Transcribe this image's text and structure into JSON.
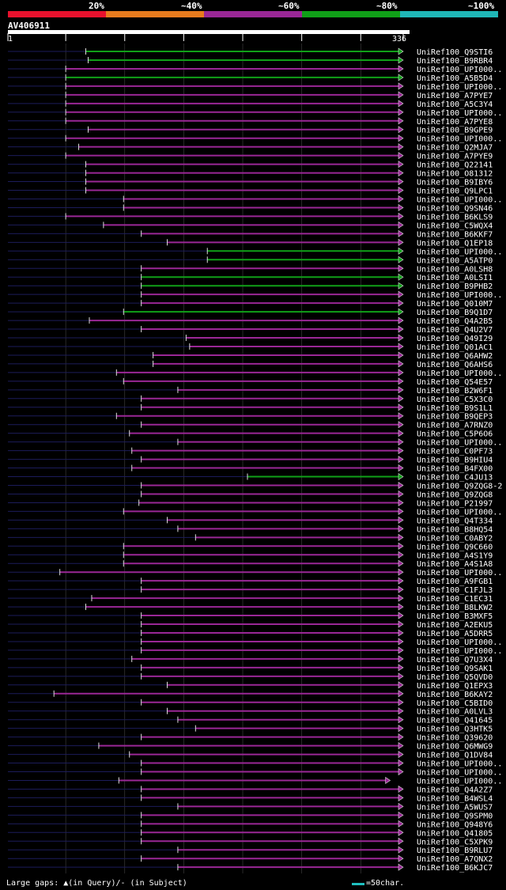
{
  "header": {
    "query_id": "AV406911",
    "range_start": "1",
    "range_end": "336"
  },
  "legend": {
    "labels": [
      "20%",
      "~40%",
      "~60%",
      "~80%",
      "~100%"
    ],
    "colors": [
      "#e8112d",
      "#e87b1e",
      "#9a2796",
      "#10a018",
      "#1fb8b8"
    ]
  },
  "footer": {
    "gaps_text": "Large gaps: ▲(in Query)/- (in Subject)",
    "scale_text": "=50char."
  },
  "chart_data": {
    "type": "alignment",
    "query_length": 336,
    "xlim": [
      1,
      336
    ],
    "hits": [
      {
        "name": "UniRef100_Q9STI6",
        "start": 67,
        "end": 336,
        "color": "green"
      },
      {
        "name": "UniRef100_B9RBR4",
        "start": 69,
        "end": 336,
        "color": "green"
      },
      {
        "name": "UniRef100_UPI000..",
        "start": 50,
        "end": 336,
        "color": "purple"
      },
      {
        "name": "UniRef100_A5B5D4",
        "start": 50,
        "end": 336,
        "color": "green"
      },
      {
        "name": "UniRef100_UPI000..",
        "start": 50,
        "end": 336,
        "color": "purple"
      },
      {
        "name": "UniRef100_A7PYE7",
        "start": 50,
        "end": 336,
        "color": "purple"
      },
      {
        "name": "UniRef100_A5C3Y4",
        "start": 50,
        "end": 336,
        "color": "purple"
      },
      {
        "name": "UniRef100_UPI000..",
        "start": 50,
        "end": 336,
        "color": "purple"
      },
      {
        "name": "UniRef100_A7PYE8",
        "start": 50,
        "end": 336,
        "color": "purple"
      },
      {
        "name": "UniRef100_B9GPE9",
        "start": 69,
        "end": 336,
        "color": "purple"
      },
      {
        "name": "UniRef100_UPI000..",
        "start": 50,
        "end": 336,
        "color": "purple"
      },
      {
        "name": "UniRef100_Q2MJA7",
        "start": 61,
        "end": 336,
        "color": "purple"
      },
      {
        "name": "UniRef100_A7PYE9",
        "start": 50,
        "end": 336,
        "color": "purple"
      },
      {
        "name": "UniRef100_Q22141",
        "start": 67,
        "end": 336,
        "color": "purple"
      },
      {
        "name": "UniRef100_O81312",
        "start": 67,
        "end": 336,
        "color": "purple"
      },
      {
        "name": "UniRef100_B9IBY6",
        "start": 67,
        "end": 336,
        "color": "purple"
      },
      {
        "name": "UniRef100_Q9LPC1",
        "start": 67,
        "end": 336,
        "color": "purple"
      },
      {
        "name": "UniRef100_UPI000..",
        "start": 99,
        "end": 336,
        "color": "purple"
      },
      {
        "name": "UniRef100_Q9SN46",
        "start": 99,
        "end": 336,
        "color": "purple"
      },
      {
        "name": "UniRef100_B6KLS9",
        "start": 50,
        "end": 336,
        "color": "purple"
      },
      {
        "name": "UniRef100_C5WQX4",
        "start": 82,
        "end": 336,
        "color": "purple"
      },
      {
        "name": "UniRef100_B6KKF7",
        "start": 114,
        "end": 336,
        "color": "purple"
      },
      {
        "name": "UniRef100_Q1EP18",
        "start": 136,
        "end": 336,
        "color": "purple"
      },
      {
        "name": "UniRef100_UPI000..",
        "start": 170,
        "end": 336,
        "color": "green"
      },
      {
        "name": "UniRef100_A5ATP0",
        "start": 170,
        "end": 336,
        "color": "green"
      },
      {
        "name": "UniRef100_A0LSH8",
        "start": 114,
        "end": 336,
        "color": "purple"
      },
      {
        "name": "UniRef100_A0LSI1",
        "start": 114,
        "end": 336,
        "color": "green"
      },
      {
        "name": "UniRef100_B9PHB2",
        "start": 114,
        "end": 336,
        "color": "green"
      },
      {
        "name": "UniRef100_UPI000..",
        "start": 114,
        "end": 336,
        "color": "purple"
      },
      {
        "name": "UniRef100_Q010M7",
        "start": 114,
        "end": 336,
        "color": "purple"
      },
      {
        "name": "UniRef100_B9Q1D7",
        "start": 99,
        "end": 336,
        "color": "green"
      },
      {
        "name": "UniRef100_Q4A2B5",
        "start": 70,
        "end": 336,
        "color": "purple"
      },
      {
        "name": "UniRef100_Q4U2V7",
        "start": 114,
        "end": 336,
        "color": "purple"
      },
      {
        "name": "UniRef100_Q49I29",
        "start": 152,
        "end": 336,
        "color": "purple"
      },
      {
        "name": "UniRef100_Q01AC1",
        "start": 155,
        "end": 336,
        "color": "purple"
      },
      {
        "name": "UniRef100_Q6AHW2",
        "start": 124,
        "end": 336,
        "color": "purple"
      },
      {
        "name": "UniRef100_Q6AHS6",
        "start": 124,
        "end": 336,
        "color": "purple"
      },
      {
        "name": "UniRef100_UPI000..",
        "start": 93,
        "end": 336,
        "color": "purple"
      },
      {
        "name": "UniRef100_Q54E57",
        "start": 99,
        "end": 336,
        "color": "purple"
      },
      {
        "name": "UniRef100_B2W6F1",
        "start": 145,
        "end": 336,
        "color": "purple"
      },
      {
        "name": "UniRef100_C5X3C0",
        "start": 114,
        "end": 336,
        "color": "purple"
      },
      {
        "name": "UniRef100_B9S1L1",
        "start": 114,
        "end": 336,
        "color": "purple"
      },
      {
        "name": "UniRef100_B9QEP3",
        "start": 93,
        "end": 336,
        "color": "purple"
      },
      {
        "name": "UniRef100_A7RNZ0",
        "start": 114,
        "end": 336,
        "color": "purple"
      },
      {
        "name": "UniRef100_C5P6O6",
        "start": 104,
        "end": 336,
        "color": "purple"
      },
      {
        "name": "UniRef100_UPI000..",
        "start": 145,
        "end": 336,
        "color": "purple"
      },
      {
        "name": "UniRef100_C0PF73",
        "start": 106,
        "end": 336,
        "color": "purple"
      },
      {
        "name": "UniRef100_B9HIU4",
        "start": 114,
        "end": 336,
        "color": "purple"
      },
      {
        "name": "UniRef100_B4FX00",
        "start": 106,
        "end": 336,
        "color": "purple"
      },
      {
        "name": "UniRef100_C4JU13",
        "start": 204,
        "end": 336,
        "color": "green"
      },
      {
        "name": "UniRef100_Q9ZQG8-2",
        "start": 114,
        "end": 336,
        "color": "purple"
      },
      {
        "name": "UniRef100_Q9ZQG8",
        "start": 114,
        "end": 336,
        "color": "purple"
      },
      {
        "name": "UniRef100_P21997",
        "start": 112,
        "end": 336,
        "color": "purple"
      },
      {
        "name": "UniRef100_UPI000..",
        "start": 99,
        "end": 336,
        "color": "purple"
      },
      {
        "name": "UniRef100_Q4T334",
        "start": 136,
        "end": 336,
        "color": "purple"
      },
      {
        "name": "UniRef100_B8HQ54",
        "start": 145,
        "end": 336,
        "color": "purple"
      },
      {
        "name": "UniRef100_C0ABY2",
        "start": 160,
        "end": 336,
        "color": "purple"
      },
      {
        "name": "UniRef100_Q9C660",
        "start": 99,
        "end": 336,
        "color": "purple"
      },
      {
        "name": "UniRef100_A4S1Y9",
        "start": 99,
        "end": 336,
        "color": "purple"
      },
      {
        "name": "UniRef100_A4S1A8",
        "start": 99,
        "end": 336,
        "color": "purple"
      },
      {
        "name": "UniRef100_UPI000..",
        "start": 45,
        "end": 336,
        "color": "purple"
      },
      {
        "name": "UniRef100_A9FGB1",
        "start": 114,
        "end": 336,
        "color": "purple"
      },
      {
        "name": "UniRef100_C1FJL3",
        "start": 114,
        "end": 336,
        "color": "purple"
      },
      {
        "name": "UniRef100_C1EC31",
        "start": 72,
        "end": 336,
        "color": "purple"
      },
      {
        "name": "UniRef100_B8LKW2",
        "start": 67,
        "end": 336,
        "color": "purple"
      },
      {
        "name": "UniRef100_B3MXF5",
        "start": 114,
        "end": 336,
        "color": "purple"
      },
      {
        "name": "UniRef100_A2EKU5",
        "start": 114,
        "end": 336,
        "color": "purple"
      },
      {
        "name": "UniRef100_A5DRR5",
        "start": 114,
        "end": 336,
        "color": "purple"
      },
      {
        "name": "UniRef100_UPI000..",
        "start": 114,
        "end": 336,
        "color": "purple"
      },
      {
        "name": "UniRef100_UPI000..",
        "start": 114,
        "end": 336,
        "color": "purple"
      },
      {
        "name": "UniRef100_Q7U3X4",
        "start": 106,
        "end": 336,
        "color": "purple"
      },
      {
        "name": "UniRef100_Q9SAK1",
        "start": 114,
        "end": 336,
        "color": "purple"
      },
      {
        "name": "UniRef100_Q5QVD0",
        "start": 114,
        "end": 336,
        "color": "purple"
      },
      {
        "name": "UniRef100_Q1EPX3",
        "start": 136,
        "end": 336,
        "color": "purple"
      },
      {
        "name": "UniRef100_B6KAY2",
        "start": 40,
        "end": 336,
        "color": "purple"
      },
      {
        "name": "UniRef100_C5BID0",
        "start": 114,
        "end": 336,
        "color": "purple"
      },
      {
        "name": "UniRef100_A0LVL3",
        "start": 136,
        "end": 336,
        "color": "purple"
      },
      {
        "name": "UniRef100_Q41645",
        "start": 145,
        "end": 336,
        "color": "purple"
      },
      {
        "name": "UniRef100_Q3HTK5",
        "start": 160,
        "end": 336,
        "color": "purple"
      },
      {
        "name": "UniRef100_Q39620",
        "start": 114,
        "end": 336,
        "color": "purple"
      },
      {
        "name": "UniRef100_Q6MWG9",
        "start": 78,
        "end": 336,
        "color": "purple"
      },
      {
        "name": "UniRef100_Q1DV84",
        "start": 104,
        "end": 336,
        "color": "purple"
      },
      {
        "name": "UniRef100_UPI000..",
        "start": 114,
        "end": 336,
        "color": "purple"
      },
      {
        "name": "UniRef100_UPI000..",
        "start": 114,
        "end": 336,
        "color": "purple"
      },
      {
        "name": "UniRef100_UPI000..",
        "start": 95,
        "end": 325,
        "color": "purple"
      },
      {
        "name": "UniRef100_Q4A2Z7",
        "start": 114,
        "end": 336,
        "color": "purple"
      },
      {
        "name": "UniRef100_B4WSL4",
        "start": 114,
        "end": 336,
        "color": "purple"
      },
      {
        "name": "UniRef100_A5WUS7",
        "start": 145,
        "end": 336,
        "color": "purple"
      },
      {
        "name": "UniRef100_Q9SPM0",
        "start": 114,
        "end": 336,
        "color": "purple"
      },
      {
        "name": "UniRef100_Q948Y6",
        "start": 114,
        "end": 336,
        "color": "purple"
      },
      {
        "name": "UniRef100_Q41805",
        "start": 114,
        "end": 336,
        "color": "purple"
      },
      {
        "name": "UniRef100_C5XPK9",
        "start": 114,
        "end": 336,
        "color": "purple"
      },
      {
        "name": "UniRef100_B9RLU7",
        "start": 145,
        "end": 336,
        "color": "purple"
      },
      {
        "name": "UniRef100_A7QNX2",
        "start": 114,
        "end": 336,
        "color": "purple"
      },
      {
        "name": "UniRef100_B6KJC7",
        "start": 145,
        "end": 336,
        "color": "purple"
      }
    ]
  }
}
